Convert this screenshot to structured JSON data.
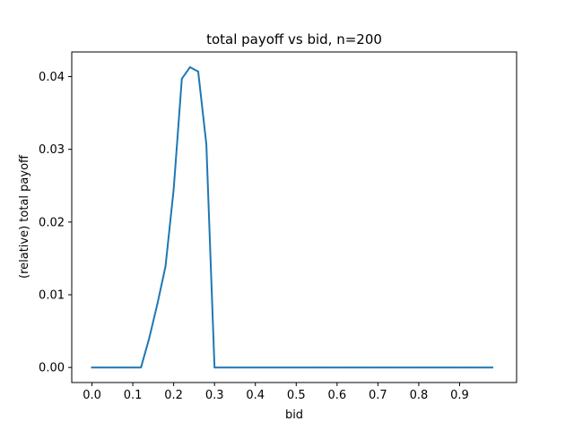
{
  "chart_data": {
    "type": "line",
    "title": "total payoff vs bid, n=200",
    "xlabel": "bid",
    "ylabel": "(relative) total payoff",
    "xlim": [
      -0.0495,
      1.0395
    ],
    "ylim": [
      -0.00207,
      0.04339
    ],
    "x_ticks": [
      0.0,
      0.1,
      0.2,
      0.3,
      0.4,
      0.5,
      0.6,
      0.7,
      0.8,
      0.9
    ],
    "x_tick_labels": [
      "0.0",
      "0.1",
      "0.2",
      "0.3",
      "0.4",
      "0.5",
      "0.6",
      "0.7",
      "0.8",
      "0.9"
    ],
    "y_ticks": [
      0.0,
      0.01,
      0.02,
      0.03,
      0.04
    ],
    "y_tick_labels": [
      "0.00",
      "0.01",
      "0.02",
      "0.03",
      "0.04"
    ],
    "grid": false,
    "color": "#1f77b4",
    "series": [
      {
        "x": [
          0.0,
          0.02,
          0.04,
          0.06,
          0.08,
          0.1,
          0.12,
          0.14,
          0.16,
          0.18,
          0.2,
          0.22,
          0.24,
          0.26,
          0.28,
          0.3,
          0.32,
          0.34,
          0.36,
          0.38,
          0.4,
          0.42,
          0.44,
          0.46,
          0.48,
          0.5,
          0.52,
          0.54,
          0.56,
          0.58,
          0.6,
          0.62,
          0.64,
          0.66,
          0.68,
          0.7,
          0.72,
          0.74,
          0.76,
          0.78,
          0.8,
          0.82,
          0.84,
          0.86,
          0.88,
          0.9,
          0.92,
          0.94,
          0.96,
          0.98
        ],
        "values": [
          0,
          0,
          0,
          0,
          0,
          0,
          0,
          0.004,
          0.0087,
          0.0139,
          0.0245,
          0.0397,
          0.0413,
          0.0407,
          0.0307,
          0,
          0,
          0,
          0,
          0,
          0,
          0,
          0,
          0,
          0,
          0,
          0,
          0,
          0,
          0,
          0,
          0,
          0,
          0,
          0,
          0,
          0,
          0,
          0,
          0,
          0,
          0,
          0,
          0,
          0,
          0,
          0,
          0,
          0,
          0
        ]
      }
    ]
  }
}
